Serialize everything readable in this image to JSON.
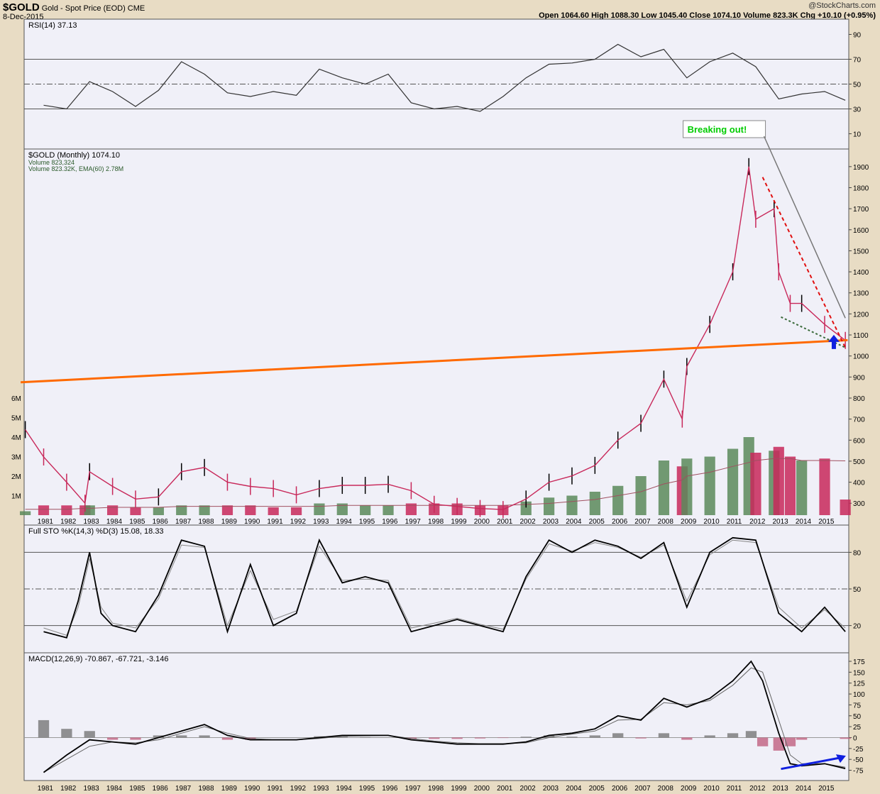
{
  "header": {
    "symbol": "$GOLD",
    "description": "Gold - Spot Price (EOD)",
    "exchange": "CME",
    "date": "8-Dec-2015",
    "ohlc": "Open 1064.60  High 1088.30  Low 1045.40  Close 1074.10  Volume 823.3K  Chg +10.10 (+0.95%)",
    "watermark": "@StockCharts.com"
  },
  "colors": {
    "panel_bg": "#f0f0f8",
    "frame_bg": "#e8dcc4",
    "up_bar": "#000000",
    "down_bar": "#c8285a",
    "volume_up": "#5a8a5a",
    "volume_down": "#c8285a",
    "support_line": "#ff6a00",
    "resistance_line": "#e01010",
    "dotted_support": "#3a6a3a",
    "arrow_blue": "#1020e0",
    "annotation_text": "#00cc00"
  },
  "annotation": {
    "label": "Breaking out!"
  },
  "chart_data": [
    {
      "type": "line",
      "panel": "rsi",
      "legend": "RSI(14) 37.13",
      "y_ticks": [
        10,
        30,
        50,
        70,
        90
      ],
      "ylim": [
        0,
        100
      ],
      "reference_lines": [
        30,
        50,
        70
      ],
      "x": [
        1981,
        1982,
        1983,
        1984,
        1985,
        1986,
        1987,
        1988,
        1989,
        1990,
        1991,
        1992,
        1993,
        1994,
        1995,
        1996,
        1997,
        1998,
        1999,
        2000,
        2001,
        2002,
        2003,
        2004,
        2005,
        2006,
        2007,
        2008,
        2009,
        2010,
        2011,
        2012,
        2013,
        2014,
        2015,
        2015.9
      ],
      "values": [
        33,
        30,
        52,
        44,
        32,
        45,
        68,
        58,
        43,
        40,
        44,
        41,
        62,
        55,
        50,
        58,
        35,
        30,
        32,
        28,
        40,
        55,
        66,
        67,
        70,
        82,
        72,
        78,
        55,
        68,
        75,
        64,
        38,
        42,
        44,
        37
      ]
    },
    {
      "type": "line",
      "panel": "price",
      "legend": "$GOLD (Monthly) 1074.10",
      "legend2": "Volume 823,324",
      "legend3": "Volume 823.32K, EMA(60) 2.78M",
      "y_ticks": [
        300,
        400,
        500,
        600,
        700,
        800,
        900,
        1000,
        1100,
        1200,
        1300,
        1400,
        1500,
        1600,
        1700,
        1800,
        1900
      ],
      "volume_ticks": [
        "1M",
        "2M",
        "3M",
        "4M",
        "5M",
        "6M"
      ],
      "ylim": [
        230,
        1950
      ],
      "x": [
        1980.2,
        1981,
        1982,
        1982.8,
        1983,
        1984,
        1985,
        1986,
        1987,
        1988,
        1989,
        1990,
        1991,
        1992,
        1993,
        1994,
        1995,
        1996,
        1997,
        1998,
        1999,
        2000,
        2001,
        2002,
        2003,
        2004,
        2005,
        2006,
        2007,
        2008,
        2008.8,
        2009,
        2010,
        2011,
        2011.7,
        2012,
        2012.8,
        2013,
        2013.5,
        2014,
        2015,
        2015.9
      ],
      "values": [
        650,
        520,
        400,
        300,
        450,
        380,
        320,
        330,
        450,
        470,
        400,
        380,
        370,
        340,
        370,
        385,
        385,
        390,
        360,
        295,
        285,
        275,
        270,
        320,
        400,
        430,
        480,
        600,
        680,
        890,
        700,
        950,
        1150,
        1400,
        1900,
        1650,
        1700,
        1400,
        1250,
        1250,
        1150,
        1074
      ],
      "volume_values_millions": [
        0.2,
        0.5,
        0.5,
        0.5,
        0.5,
        0.5,
        0.4,
        0.4,
        0.5,
        0.5,
        0.5,
        0.5,
        0.4,
        0.4,
        0.6,
        0.6,
        0.5,
        0.5,
        0.6,
        0.6,
        0.6,
        0.5,
        0.5,
        0.7,
        0.9,
        1.0,
        1.2,
        1.5,
        2.0,
        2.8,
        2.5,
        2.9,
        3.0,
        3.4,
        4.0,
        3.2,
        3.3,
        3.5,
        3.0,
        2.8,
        2.9,
        0.8
      ],
      "volume_ema_millions": [
        0.3,
        0.3,
        0.3,
        0.35,
        0.35,
        0.4,
        0.4,
        0.4,
        0.45,
        0.45,
        0.45,
        0.45,
        0.45,
        0.45,
        0.45,
        0.5,
        0.5,
        0.5,
        0.5,
        0.5,
        0.5,
        0.5,
        0.5,
        0.55,
        0.6,
        0.7,
        0.8,
        1.0,
        1.2,
        1.6,
        1.8,
        2.0,
        2.2,
        2.5,
        2.7,
        2.8,
        2.9,
        2.9,
        2.9,
        2.8,
        2.8,
        2.78
      ],
      "support_line": {
        "x": [
          1980,
          2016
        ],
        "y": [
          875,
          1075
        ]
      },
      "resistance_line": {
        "x": [
          2012.3,
          2015.9
        ],
        "y": [
          1850,
          1040
        ]
      },
      "dotted_support": {
        "x": [
          2013.1,
          2015.9
        ],
        "y": [
          1185,
          1040
        ]
      }
    },
    {
      "type": "line",
      "panel": "stochastic",
      "legend": "Full STO %K(14,3) %D(3) 15.08, 18.33",
      "y_ticks": [
        20,
        50,
        80
      ],
      "ylim": [
        0,
        100
      ],
      "reference_lines": [
        20,
        50,
        80
      ],
      "x": [
        1981,
        1982,
        1982.5,
        1983,
        1983.5,
        1984,
        1985,
        1986,
        1987,
        1988,
        1989,
        1990,
        1991,
        1992,
        1993,
        1994,
        1995,
        1996,
        1997,
        1998,
        1999,
        2000,
        2001,
        2002,
        2003,
        2004,
        2005,
        2006,
        2007,
        2008,
        2009,
        2010,
        2011,
        2012,
        2013,
        2014,
        2015,
        2015.9
      ],
      "values_k": [
        15,
        10,
        40,
        80,
        30,
        20,
        15,
        45,
        90,
        85,
        15,
        70,
        20,
        30,
        90,
        55,
        60,
        55,
        15,
        20,
        25,
        20,
        15,
        60,
        90,
        80,
        90,
        85,
        75,
        88,
        35,
        80,
        92,
        90,
        30,
        15,
        35,
        15
      ],
      "values_d": [
        18,
        12,
        35,
        75,
        35,
        22,
        18,
        42,
        86,
        84,
        20,
        65,
        25,
        32,
        85,
        57,
        58,
        57,
        18,
        22,
        26,
        21,
        17,
        58,
        87,
        81,
        88,
        84,
        76,
        86,
        40,
        78,
        90,
        88,
        35,
        18,
        33,
        18
      ]
    },
    {
      "type": "line",
      "panel": "macd",
      "legend": "MACD(12,26,9) -70.867, -67.721, -3.146",
      "y_ticks": [
        -75,
        -50,
        -25,
        0,
        25,
        50,
        75,
        100,
        125,
        150,
        175
      ],
      "ylim": [
        -92,
        188
      ],
      "x": [
        1981,
        1982,
        1983,
        1984,
        1985,
        1986,
        1987,
        1988,
        1989,
        1990,
        1991,
        1992,
        1993,
        1994,
        1995,
        1996,
        1997,
        1998,
        1999,
        2000,
        2001,
        2002,
        2003,
        2004,
        2005,
        2006,
        2007,
        2008,
        2009,
        2010,
        2011,
        2011.8,
        2012.3,
        2013,
        2013.5,
        2014,
        2015,
        2015.9
      ],
      "macd": [
        -80,
        -40,
        -5,
        -10,
        -15,
        0,
        15,
        30,
        5,
        -5,
        -5,
        -5,
        0,
        5,
        5,
        5,
        -5,
        -10,
        -15,
        -15,
        -15,
        -10,
        5,
        10,
        20,
        50,
        40,
        90,
        70,
        90,
        130,
        175,
        130,
        10,
        -60,
        -65,
        -60,
        -71
      ],
      "signal": [
        -80,
        -50,
        -20,
        -10,
        -12,
        -5,
        10,
        25,
        10,
        -2,
        -5,
        -5,
        -2,
        3,
        4,
        5,
        -2,
        -8,
        -12,
        -14,
        -14,
        -12,
        0,
        8,
        15,
        40,
        42,
        80,
        75,
        85,
        120,
        160,
        150,
        40,
        -40,
        -60,
        -60,
        -68
      ],
      "histogram": [
        40,
        20,
        15,
        -5,
        -5,
        5,
        5,
        5,
        -5,
        -5,
        0,
        0,
        3,
        2,
        1,
        0,
        -3,
        -3,
        -3,
        -2,
        -1,
        2,
        5,
        2,
        5,
        10,
        -2,
        10,
        -5,
        5,
        10,
        15,
        -20,
        -30,
        -20,
        -5,
        0,
        -3
      ],
      "arrow": {
        "x": [
          2013.1,
          2015.8
        ],
        "y": [
          -72,
          -45
        ]
      }
    }
  ],
  "x_axis": {
    "years": [
      "1981",
      "1982",
      "1983",
      "1984",
      "1985",
      "1986",
      "1987",
      "1988",
      "1989",
      "1990",
      "1991",
      "1992",
      "1993",
      "1994",
      "1995",
      "1996",
      "1997",
      "1998",
      "1999",
      "2000",
      "2001",
      "2002",
      "2003",
      "2004",
      "2005",
      "2006",
      "2007",
      "2008",
      "2009",
      "2010",
      "2011",
      "2012",
      "2013",
      "2014",
      "2015"
    ]
  }
}
